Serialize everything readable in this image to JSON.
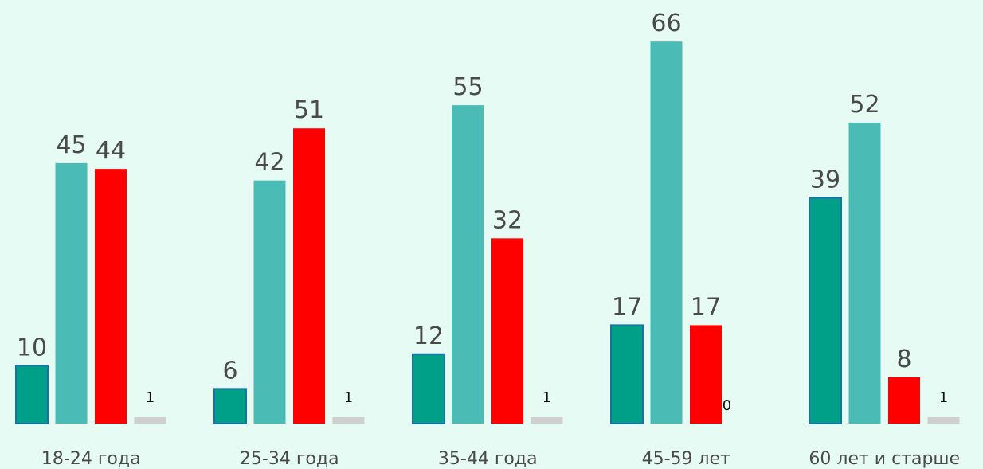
{
  "chart_data": {
    "type": "bar",
    "title": "",
    "xlabel": "",
    "ylabel": "",
    "ylim": [
      0,
      66
    ],
    "grid": false,
    "legend": "none",
    "categories": [
      "18-24 года",
      "25-34 года",
      "35-44 года",
      "45-59 лет",
      "60 лет и старше"
    ],
    "series": [
      {
        "values": [
          10,
          6,
          12,
          17,
          39
        ],
        "color": "#00a088",
        "border": "#1d6fa8"
      },
      {
        "values": [
          45,
          42,
          55,
          66,
          52
        ],
        "color": "#4bbcb5"
      },
      {
        "values": [
          44,
          51,
          32,
          17,
          8
        ],
        "color": "#ff0000"
      },
      {
        "values": [
          1,
          1,
          1,
          0,
          1
        ],
        "color": "#cfcfcf"
      }
    ]
  }
}
